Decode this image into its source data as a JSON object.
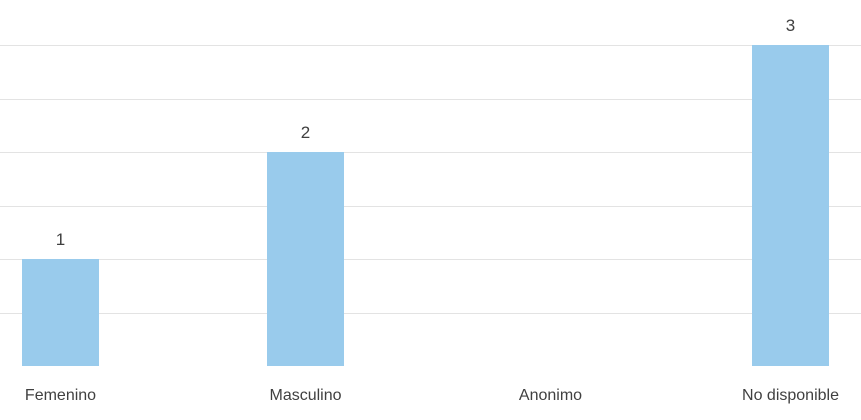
{
  "chart_data": {
    "type": "bar",
    "categories": [
      "Femenino",
      "Masculino",
      "Anonimo",
      "No disponible"
    ],
    "values": [
      1,
      2,
      0,
      3
    ],
    "data_labels": [
      "1",
      "2",
      "",
      "3"
    ],
    "title": "",
    "xlabel": "",
    "ylabel": "",
    "ylim": [
      0,
      3
    ],
    "grid": true,
    "legend": "none",
    "colors": {
      "bar": "#99cbec",
      "grid": "#e3e3e3",
      "text": "#404040"
    }
  }
}
